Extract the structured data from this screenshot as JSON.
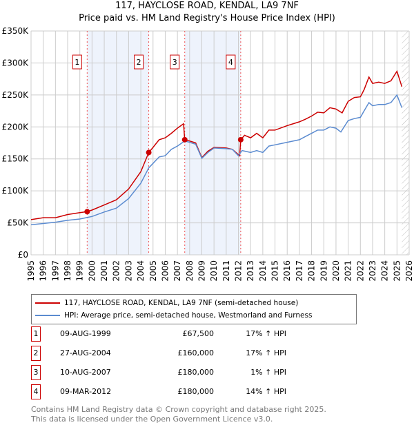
{
  "chart_data": {
    "type": "line",
    "title": "117, HAYCLOSE ROAD, KENDAL, LA9 7NF",
    "subtitle": "Price paid vs. HM Land Registry's House Price Index (HPI)",
    "xlim": [
      1995,
      2026
    ],
    "ylim": [
      0,
      350000
    ],
    "yticks": [
      {
        "v": 0,
        "label": "£0"
      },
      {
        "v": 50000,
        "label": "£50K"
      },
      {
        "v": 100000,
        "label": "£100K"
      },
      {
        "v": 150000,
        "label": "£150K"
      },
      {
        "v": 200000,
        "label": "£200K"
      },
      {
        "v": 250000,
        "label": "£250K"
      },
      {
        "v": 300000,
        "label": "£300K"
      },
      {
        "v": 350000,
        "label": "£350K"
      }
    ],
    "xticks": [
      "1995",
      "1996",
      "1997",
      "1998",
      "1999",
      "2000",
      "2001",
      "2002",
      "2003",
      "2004",
      "2005",
      "2006",
      "2007",
      "2008",
      "2009",
      "2010",
      "2011",
      "2012",
      "2013",
      "2014",
      "2015",
      "2016",
      "2017",
      "2018",
      "2019",
      "2020",
      "2021",
      "2022",
      "2023",
      "2024",
      "2025",
      "2026"
    ],
    "grid": true,
    "shaded_ranges": [
      [
        1999.6,
        2004.65
      ],
      [
        2007.6,
        2012.19
      ]
    ],
    "forecast_hatch_from": 2025.4,
    "colors": {
      "property": "#cc0000",
      "hpi": "#5b8bd0",
      "marker_box": "#cc0000"
    },
    "series": [
      {
        "name": "117, HAYCLOSE ROAD, KENDAL, LA9 7NF (semi-detached house)",
        "color": "#cc0000",
        "x": [
          1995,
          1996,
          1997,
          1998,
          1999,
          1999.6,
          2000,
          2001,
          2002,
          2003,
          2004,
          2004.65,
          2005,
          2005.5,
          2006,
          2006.5,
          2007,
          2007.5,
          2007.6,
          2008,
          2008.5,
          2009,
          2009.5,
          2010,
          2011,
          2011.5,
          2012.1,
          2012.19,
          2012.5,
          2013,
          2013.5,
          2014,
          2014.5,
          2015,
          2016,
          2016.5,
          2017,
          2017.5,
          2018,
          2018.5,
          2019,
          2019.5,
          2020,
          2020.5,
          2021,
          2021.5,
          2022,
          2022.3,
          2022.7,
          2023,
          2023.5,
          2024,
          2024.5,
          2025,
          2025.4
        ],
        "y": [
          55000,
          58000,
          58000,
          63000,
          66000,
          67500,
          70000,
          78000,
          86000,
          103000,
          130000,
          160000,
          168000,
          180000,
          183000,
          190000,
          198000,
          205000,
          180000,
          178000,
          175000,
          152000,
          162000,
          168000,
          167000,
          165000,
          155000,
          180000,
          187000,
          183000,
          190000,
          183000,
          195000,
          195000,
          202000,
          205000,
          208000,
          212000,
          217000,
          223000,
          222000,
          230000,
          228000,
          222000,
          240000,
          246000,
          247000,
          258000,
          278000,
          268000,
          270000,
          268000,
          272000,
          287000,
          263000
        ]
      },
      {
        "name": "HPI: Average price, semi-detached house, Westmorland and Furness",
        "color": "#5b8bd0",
        "x": [
          1995,
          1996,
          1997,
          1998,
          1999,
          2000,
          2001,
          2002,
          2003,
          2004,
          2004.65,
          2005,
          2005.5,
          2006,
          2006.5,
          2007,
          2007.6,
          2008,
          2008.5,
          2009,
          2009.5,
          2010,
          2011,
          2011.5,
          2012,
          2012.3,
          2013,
          2013.5,
          2014,
          2014.5,
          2015,
          2016,
          2017,
          2017.5,
          2018,
          2018.5,
          2019,
          2019.5,
          2020,
          2020.4,
          2021,
          2021.5,
          2022,
          2022.3,
          2022.7,
          2023,
          2023.5,
          2024,
          2024.5,
          2025,
          2025.4
        ],
        "y": [
          47000,
          49000,
          51000,
          54000,
          56000,
          60000,
          67000,
          73000,
          88000,
          112000,
          136000,
          143000,
          153000,
          155000,
          165000,
          170000,
          178000,
          176000,
          173000,
          151000,
          160000,
          167000,
          166000,
          165000,
          155000,
          163000,
          160000,
          163000,
          160000,
          170000,
          172000,
          176000,
          180000,
          185000,
          190000,
          195000,
          195000,
          200000,
          198000,
          192000,
          210000,
          213000,
          215000,
          225000,
          238000,
          233000,
          235000,
          235000,
          238000,
          250000,
          230000
        ]
      }
    ],
    "sales": [
      {
        "id": "1",
        "x": 1999.6,
        "y": 67500,
        "date": "09-AUG-1999",
        "price": "£67,500",
        "pct": "17% ↑ HPI"
      },
      {
        "id": "2",
        "x": 2004.65,
        "y": 160000,
        "date": "27-AUG-2004",
        "price": "£160,000",
        "pct": "17% ↑ HPI"
      },
      {
        "id": "3",
        "x": 2007.6,
        "y": 180000,
        "date": "10-AUG-2007",
        "price": "£180,000",
        "pct": "1% ↑ HPI"
      },
      {
        "id": "4",
        "x": 2012.19,
        "y": 180000,
        "date": "09-MAR-2012",
        "price": "£180,000",
        "pct": "14% ↑ HPI"
      }
    ]
  },
  "legend": {
    "property": "117, HAYCLOSE ROAD, KENDAL, LA9 7NF (semi-detached house)",
    "hpi": "HPI: Average price, semi-detached house, Westmorland and Furness"
  },
  "footer": {
    "line1": "Contains HM Land Registry data © Crown copyright and database right 2025.",
    "line2": "This data is licensed under the Open Government Licence v3.0."
  }
}
